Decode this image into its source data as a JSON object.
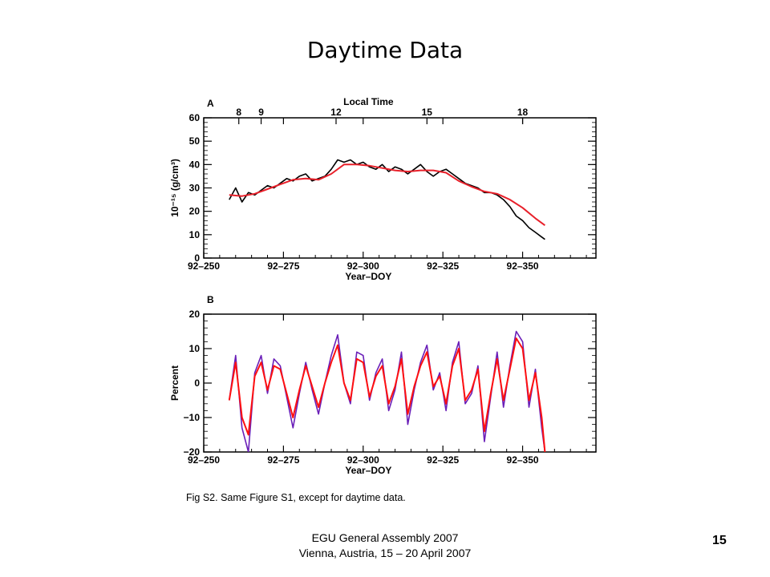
{
  "slide": {
    "title": "Daytime Data",
    "caption": "Fig S2.  Same Figure S1, except for daytime data.",
    "footer_line1": "EGU General Assembly 2007",
    "footer_line2": "Vienna, Austria, 15 – 20 April 2007",
    "page_number": "15"
  },
  "chart_data": [
    {
      "panel_label": "A",
      "type": "line",
      "top_axis_label": "Local Time",
      "top_ticks": [
        {
          "year_doy": 261,
          "label": "8"
        },
        {
          "year_doy": 268,
          "label": "9"
        },
        {
          "year_doy": 291.5,
          "label": "12"
        },
        {
          "year_doy": 320,
          "label": "15"
        },
        {
          "year_doy": 350,
          "label": "18"
        }
      ],
      "xlabel": "Year–DOY",
      "ylabel": "10⁻¹⁵ (g/cm³)",
      "xlim": [
        250,
        373
      ],
      "ylim": [
        0,
        60
      ],
      "x_tick_values": [
        250,
        275,
        300,
        325,
        350
      ],
      "x_tick_labels": [
        "92–250",
        "92–275",
        "92–300",
        "92–325",
        "92–350"
      ],
      "y_ticks": [
        0,
        10,
        20,
        30,
        40,
        50,
        60
      ],
      "series": [
        {
          "color": "#000000",
          "x": [
            258,
            260,
            262,
            264,
            266,
            268,
            270,
            272,
            274,
            276,
            278,
            280,
            282,
            284,
            286,
            288,
            290,
            292,
            294,
            296,
            298,
            300,
            302,
            304,
            306,
            308,
            310,
            312,
            314,
            316,
            318,
            320,
            322,
            324,
            326,
            328,
            330,
            332,
            334,
            336,
            338,
            340,
            342,
            344,
            346,
            348,
            350,
            352,
            354,
            356,
            357
          ],
          "values": [
            25,
            30,
            24,
            28,
            27,
            29,
            31,
            30,
            32,
            34,
            33,
            35,
            36,
            33,
            34,
            35,
            38,
            42,
            41,
            42,
            40,
            41,
            39,
            38,
            40,
            37,
            39,
            38,
            36,
            38,
            40,
            37,
            35,
            37,
            38,
            36,
            34,
            32,
            31,
            30,
            28,
            28,
            27,
            25,
            22,
            18,
            16,
            13,
            11,
            9,
            8
          ]
        },
        {
          "color": "#e8202a",
          "x": [
            258,
            262,
            266,
            270,
            274,
            278,
            282,
            286,
            290,
            294,
            298,
            302,
            306,
            310,
            314,
            318,
            322,
            326,
            330,
            334,
            338,
            342,
            346,
            350,
            354,
            357
          ],
          "values": [
            27,
            26.5,
            27.5,
            29.5,
            31.5,
            33.5,
            34,
            33.5,
            36,
            40,
            40,
            39.5,
            38.5,
            37.5,
            37,
            37.5,
            37.5,
            36.5,
            33,
            30.5,
            28.5,
            27.5,
            25,
            21.5,
            17,
            14
          ]
        }
      ]
    },
    {
      "panel_label": "B",
      "type": "line",
      "xlabel": "Year–DOY",
      "ylabel": "Percent",
      "xlim": [
        250,
        373
      ],
      "ylim": [
        -20,
        20
      ],
      "x_tick_values": [
        250,
        275,
        300,
        325,
        350
      ],
      "x_tick_labels": [
        "92–250",
        "92–275",
        "92–300",
        "92–325",
        "92–350"
      ],
      "y_ticks": [
        -20,
        -10,
        0,
        10,
        20
      ],
      "series": [
        {
          "color": "#6a1fb8",
          "x": [
            258,
            260,
            262,
            264,
            266,
            268,
            270,
            272,
            274,
            276,
            278,
            280,
            282,
            284,
            286,
            288,
            290,
            292,
            294,
            296,
            298,
            300,
            302,
            304,
            306,
            308,
            310,
            312,
            314,
            316,
            318,
            320,
            322,
            324,
            326,
            328,
            330,
            332,
            334,
            336,
            338,
            340,
            342,
            344,
            346,
            348,
            350,
            352,
            354,
            356,
            357
          ],
          "values": [
            -5,
            8,
            -13,
            -20,
            3,
            8,
            -3,
            7,
            5,
            -4,
            -13,
            -3,
            6,
            -2,
            -9,
            0,
            8,
            14,
            0,
            -6,
            9,
            8,
            -5,
            3,
            7,
            -8,
            -2,
            9,
            -12,
            -2,
            6,
            11,
            -2,
            3,
            -8,
            6,
            12,
            -6,
            -3,
            5,
            -17,
            -4,
            9,
            -7,
            5,
            15,
            12,
            -7,
            4,
            -13,
            -20
          ]
        },
        {
          "color": "#ff1010",
          "x": [
            258,
            260,
            262,
            264,
            266,
            268,
            270,
            272,
            274,
            276,
            278,
            280,
            282,
            284,
            286,
            288,
            290,
            292,
            294,
            296,
            298,
            300,
            302,
            304,
            306,
            308,
            310,
            312,
            314,
            316,
            318,
            320,
            322,
            324,
            326,
            328,
            330,
            332,
            334,
            336,
            338,
            340,
            342,
            344,
            346,
            348,
            350,
            352,
            354,
            356,
            357
          ],
          "values": [
            -5,
            6,
            -10,
            -15,
            2,
            6,
            -2,
            5,
            4,
            -3,
            -10,
            -2,
            5,
            -1,
            -7,
            0,
            6,
            11,
            0,
            -5,
            7,
            6,
            -4,
            2,
            5,
            -6,
            -1,
            7,
            -9,
            -1,
            5,
            9,
            -1,
            2,
            -6,
            5,
            10,
            -5,
            -2,
            4,
            -14,
            -3,
            7,
            -5,
            4,
            13,
            10,
            -5,
            3,
            -10,
            -20
          ]
        }
      ]
    }
  ]
}
